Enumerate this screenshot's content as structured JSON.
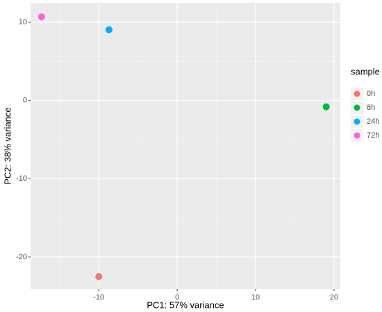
{
  "chart_data": {
    "type": "scatter",
    "x_label": "PC1: 57% variance",
    "y_label": "PC2: 38% variance",
    "legend_title": "sample",
    "legend": "right",
    "series": [
      {
        "name": "0h",
        "color": "#F8766D",
        "x": [
          -10
        ],
        "values": [
          -22.5
        ]
      },
      {
        "name": "8h",
        "color": "#00BA38",
        "x": [
          19
        ],
        "values": [
          -0.8
        ]
      },
      {
        "name": "24h",
        "color": "#00B0F6",
        "x": [
          -8.7
        ],
        "values": [
          9.05
        ]
      },
      {
        "name": "72h",
        "color": "#F564E3",
        "x": [
          -17.3
        ],
        "values": [
          10.7
        ]
      }
    ],
    "xlim": [
      -18.7,
      20.8
    ],
    "xticks": [
      -10,
      0,
      10,
      20
    ],
    "ylim": [
      -24.1,
      12.5
    ],
    "yticks": [
      -20,
      -10,
      0,
      10
    ],
    "grid": true
  }
}
